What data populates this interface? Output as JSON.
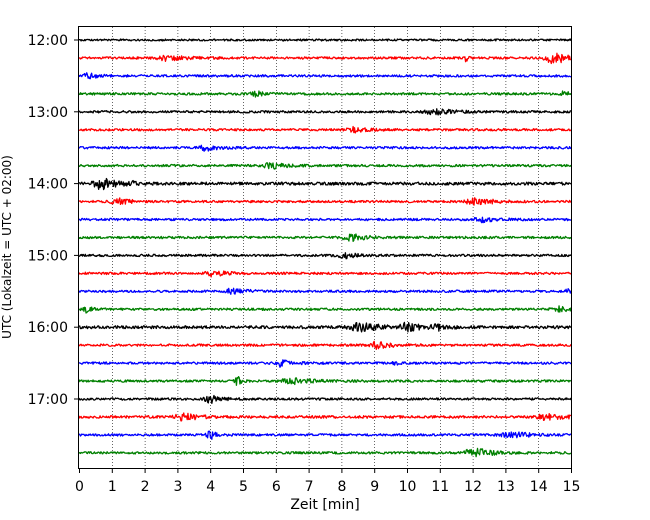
{
  "chart_data": {
    "type": "line",
    "title": "",
    "xlabel": "Zeit  [min]",
    "ylabel": "UTC (Lokalzeit = UTC + 02:00)",
    "xlim": [
      0,
      15
    ],
    "x_ticks": [
      0,
      1,
      2,
      3,
      4,
      5,
      6,
      7,
      8,
      9,
      10,
      11,
      12,
      13,
      14,
      15
    ],
    "y_ticks": [
      "12:00",
      "13:00",
      "14:00",
      "15:00",
      "16:00",
      "17:00"
    ],
    "grid": "vertical dotted",
    "colors": [
      "#000000",
      "#ff0000",
      "#0000ff",
      "#008000"
    ],
    "traces": [
      {
        "start": "12:00",
        "color": "#000000",
        "noise": 0.3,
        "events": []
      },
      {
        "start": "12:15",
        "color": "#ff0000",
        "noise": 0.35,
        "events": [
          [
            2.7,
            0.8,
            0.6
          ],
          [
            11.8,
            1.2,
            0.05
          ],
          [
            14.5,
            1.8,
            0.5
          ]
        ]
      },
      {
        "start": "12:30",
        "color": "#0000ff",
        "noise": 0.35,
        "events": [
          [
            0.3,
            0.8,
            0.3
          ]
        ]
      },
      {
        "start": "12:45",
        "color": "#008000",
        "noise": 0.35,
        "events": [
          [
            5.4,
            0.8,
            0.3
          ],
          [
            14.8,
            0.8,
            0.2
          ]
        ]
      },
      {
        "start": "13:00",
        "color": "#000000",
        "noise": 0.35,
        "events": [
          [
            10.9,
            0.9,
            0.6
          ]
        ]
      },
      {
        "start": "13:15",
        "color": "#ff0000",
        "noise": 0.35,
        "events": [
          [
            8.4,
            0.7,
            0.4
          ]
        ]
      },
      {
        "start": "13:30",
        "color": "#0000ff",
        "noise": 0.35,
        "events": [
          [
            3.9,
            1.0,
            0.4
          ]
        ]
      },
      {
        "start": "13:45",
        "color": "#008000",
        "noise": 0.35,
        "events": [
          [
            5.9,
            0.9,
            0.5
          ]
        ]
      },
      {
        "start": "14:00",
        "color": "#000000",
        "noise": 0.45,
        "events": [
          [
            0.7,
            1.6,
            0.5
          ],
          [
            1.6,
            0.8,
            0.1
          ]
        ]
      },
      {
        "start": "14:15",
        "color": "#ff0000",
        "noise": 0.35,
        "events": [
          [
            1.2,
            1.0,
            0.4
          ],
          [
            12.1,
            1.3,
            0.5
          ]
        ]
      },
      {
        "start": "14:30",
        "color": "#0000ff",
        "noise": 0.35,
        "events": [
          [
            12.3,
            0.7,
            0.5
          ]
        ]
      },
      {
        "start": "14:45",
        "color": "#008000",
        "noise": 0.35,
        "events": [
          [
            8.3,
            1.0,
            0.5
          ]
        ]
      },
      {
        "start": "15:00",
        "color": "#000000",
        "noise": 0.35,
        "events": [
          [
            8.1,
            0.8,
            0.4
          ]
        ]
      },
      {
        "start": "15:15",
        "color": "#ff0000",
        "noise": 0.35,
        "events": [
          [
            4.1,
            1.0,
            0.4
          ]
        ]
      },
      {
        "start": "15:30",
        "color": "#0000ff",
        "noise": 0.35,
        "events": [
          [
            4.7,
            0.9,
            0.4
          ],
          [
            14.9,
            0.9,
            0.15
          ]
        ]
      },
      {
        "start": "15:45",
        "color": "#008000",
        "noise": 0.35,
        "events": [
          [
            0.2,
            1.0,
            0.2
          ],
          [
            14.6,
            0.8,
            0.4
          ]
        ]
      },
      {
        "start": "16:00",
        "color": "#000000",
        "noise": 0.45,
        "events": [
          [
            8.6,
            1.4,
            0.6
          ],
          [
            10.0,
            1.2,
            0.4
          ],
          [
            10.9,
            1.0,
            0.3
          ]
        ]
      },
      {
        "start": "16:15",
        "color": "#ff0000",
        "noise": 0.35,
        "events": [
          [
            9.1,
            1.0,
            0.5
          ]
        ]
      },
      {
        "start": "16:30",
        "color": "#0000ff",
        "noise": 0.35,
        "events": [
          [
            6.2,
            1.2,
            0.3
          ],
          [
            9.6,
            0.8,
            0.1
          ]
        ]
      },
      {
        "start": "16:45",
        "color": "#008000",
        "noise": 0.35,
        "events": [
          [
            4.8,
            2.2,
            0.1
          ],
          [
            6.5,
            0.9,
            0.6
          ]
        ]
      },
      {
        "start": "17:00",
        "color": "#000000",
        "noise": 0.35,
        "events": [
          [
            4.0,
            1.4,
            0.3
          ]
        ]
      },
      {
        "start": "17:15",
        "color": "#ff0000",
        "noise": 0.4,
        "events": [
          [
            3.2,
            1.0,
            0.5
          ],
          [
            14.2,
            1.0,
            0.5
          ]
        ]
      },
      {
        "start": "17:30",
        "color": "#0000ff",
        "noise": 0.35,
        "events": [
          [
            4.0,
            1.4,
            0.2
          ],
          [
            13.2,
            0.9,
            0.6
          ]
        ]
      },
      {
        "start": "17:45",
        "color": "#008000",
        "noise": 0.35,
        "events": [
          [
            12.2,
            1.1,
            0.5
          ],
          [
            11.8,
            0.8,
            0.2
          ]
        ]
      }
    ]
  }
}
